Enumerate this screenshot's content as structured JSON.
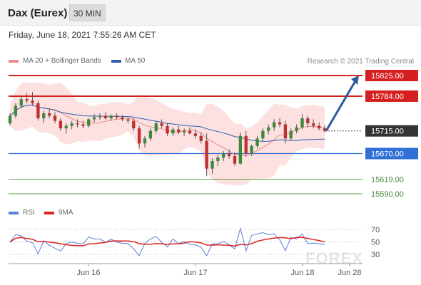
{
  "header": {
    "instrument": "Dax (Eurex)",
    "timeframe": "30 MIN",
    "timestamp": "Friday, June 18, 2021 7:55:26 AM CET"
  },
  "legend": {
    "ma20": {
      "label": "MA 20 + Bollinger Bands",
      "color": "#ee8888"
    },
    "ma50": {
      "label": "MA 50",
      "color": "#2f5ea6"
    },
    "credit": "Research © 2021 Trading Central"
  },
  "rsi_legend": {
    "rsi": {
      "label": "RSI",
      "color": "#5a7fd6"
    },
    "ma9": {
      "label": "9MA",
      "color": "#dd2222"
    }
  },
  "watermark": "FOREX",
  "chart_data": {
    "type": "candlestick",
    "price_range": [
      15580,
      15840
    ],
    "x_ticks": [
      "Jun 16",
      "Jun 17",
      "Jun 18",
      "Jun 28"
    ],
    "levels": [
      {
        "label": "15825.00",
        "value": 15825,
        "color": "#d62020",
        "kind": "resistance"
      },
      {
        "label": "15784.00",
        "value": 15784,
        "color": "#d62020",
        "kind": "resistance"
      },
      {
        "label": "15715.00",
        "value": 15715,
        "color": "#333333",
        "kind": "current"
      },
      {
        "label": "15670.00",
        "value": 15670,
        "color": "#2f6fd6",
        "kind": "pivot"
      },
      {
        "label": "15619.00",
        "value": 15619,
        "color": "#5aa54a",
        "kind": "support"
      },
      {
        "label": "15590.00",
        "value": 15590,
        "color": "#5aa54a",
        "kind": "support"
      }
    ],
    "arrow": {
      "from": 15715,
      "to": 15825,
      "color": "#2d5a9a"
    },
    "candles": [
      [
        15730,
        15750,
        15725,
        15745
      ],
      [
        15745,
        15770,
        15740,
        15765
      ],
      [
        15765,
        15785,
        15760,
        15778
      ],
      [
        15778,
        15790,
        15770,
        15775
      ],
      [
        15775,
        15792,
        15765,
        15770
      ],
      [
        15770,
        15775,
        15735,
        15740
      ],
      [
        15740,
        15755,
        15730,
        15750
      ],
      [
        15750,
        15760,
        15740,
        15745
      ],
      [
        15745,
        15752,
        15730,
        15735
      ],
      [
        15735,
        15740,
        15715,
        15720
      ],
      [
        15720,
        15730,
        15710,
        15725
      ],
      [
        15725,
        15735,
        15718,
        15730
      ],
      [
        15730,
        15738,
        15722,
        15728
      ],
      [
        15728,
        15735,
        15720,
        15725
      ],
      [
        15725,
        15740,
        15722,
        15738
      ],
      [
        15738,
        15748,
        15732,
        15742
      ],
      [
        15742,
        15750,
        15736,
        15745
      ],
      [
        15745,
        15752,
        15738,
        15740
      ],
      [
        15740,
        15748,
        15735,
        15745
      ],
      [
        15745,
        15750,
        15738,
        15742
      ],
      [
        15742,
        15746,
        15734,
        15738
      ],
      [
        15738,
        15742,
        15730,
        15735
      ],
      [
        15735,
        15740,
        15715,
        15720
      ],
      [
        15720,
        15725,
        15680,
        15690
      ],
      [
        15690,
        15705,
        15682,
        15700
      ],
      [
        15700,
        15720,
        15695,
        15715
      ],
      [
        15715,
        15735,
        15710,
        15730
      ],
      [
        15730,
        15738,
        15720,
        15725
      ],
      [
        15725,
        15730,
        15705,
        15710
      ],
      [
        15710,
        15722,
        15705,
        15718
      ],
      [
        15718,
        15725,
        15708,
        15712
      ],
      [
        15712,
        15720,
        15705,
        15715
      ],
      [
        15715,
        15722,
        15708,
        15710
      ],
      [
        15710,
        15718,
        15700,
        15705
      ],
      [
        15705,
        15712,
        15690,
        15695
      ],
      [
        15695,
        15710,
        15625,
        15640
      ],
      [
        15640,
        15660,
        15630,
        15655
      ],
      [
        15655,
        15668,
        15645,
        15662
      ],
      [
        15662,
        15675,
        15655,
        15670
      ],
      [
        15670,
        15678,
        15660,
        15665
      ],
      [
        15665,
        15672,
        15645,
        15650
      ],
      [
        15650,
        15712,
        15648,
        15705
      ],
      [
        15705,
        15715,
        15665,
        15670
      ],
      [
        15670,
        15688,
        15665,
        15685
      ],
      [
        15685,
        15705,
        15680,
        15700
      ],
      [
        15700,
        15720,
        15695,
        15715
      ],
      [
        15715,
        15728,
        15708,
        15722
      ],
      [
        15722,
        15738,
        15715,
        15732
      ],
      [
        15732,
        15740,
        15722,
        15728
      ],
      [
        15728,
        15735,
        15690,
        15700
      ],
      [
        15700,
        15720,
        15695,
        15715
      ],
      [
        15715,
        15728,
        15710,
        15722
      ],
      [
        15722,
        15748,
        15718,
        15740
      ],
      [
        15740,
        15745,
        15722,
        15730
      ],
      [
        15730,
        15738,
        15720,
        15725
      ],
      [
        15725,
        15732,
        15716,
        15720
      ],
      [
        15720,
        15726,
        15712,
        15715
      ]
    ]
  }
}
